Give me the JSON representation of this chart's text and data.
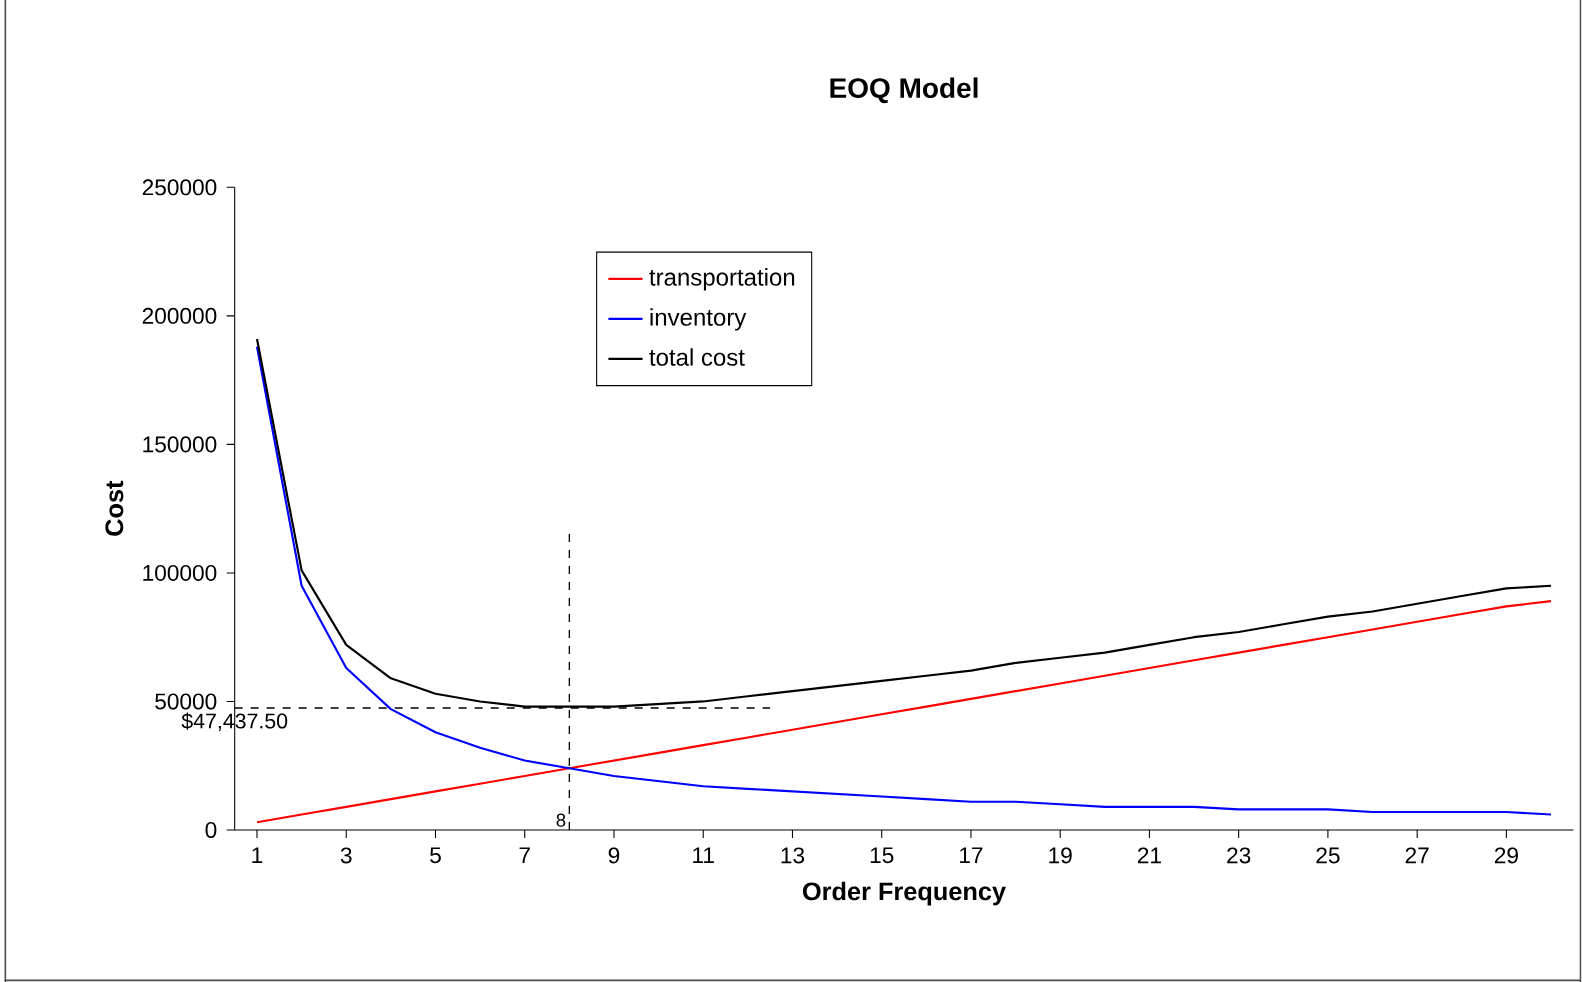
{
  "chart_data": {
    "type": "line",
    "title": "EOQ Model",
    "xlabel": "Order Frequency",
    "ylabel": "Cost",
    "x": [
      1,
      2,
      3,
      4,
      5,
      6,
      7,
      8,
      9,
      10,
      11,
      12,
      13,
      14,
      15,
      16,
      17,
      18,
      19,
      20,
      21,
      22,
      23,
      24,
      25,
      26,
      27,
      28,
      29,
      30
    ],
    "series": [
      {
        "name": "transportation",
        "color": "#ff0000",
        "values": [
          3000,
          6000,
          9000,
          12000,
          15000,
          18000,
          21000,
          24000,
          27000,
          30000,
          33000,
          36000,
          39000,
          42000,
          45000,
          48000,
          51000,
          54000,
          57000,
          60000,
          63000,
          66000,
          69000,
          72000,
          75000,
          78000,
          81000,
          84000,
          87000,
          89000
        ]
      },
      {
        "name": "inventory",
        "color": "#0000ff",
        "values": [
          188000,
          95000,
          63000,
          47000,
          38000,
          32000,
          27000,
          24000,
          21000,
          19000,
          17000,
          16000,
          15000,
          14000,
          13000,
          12000,
          11000,
          11000,
          10000,
          9000,
          9000,
          9000,
          8000,
          8000,
          8000,
          7000,
          7000,
          7000,
          7000,
          6000
        ]
      },
      {
        "name": "total cost",
        "color": "#000000",
        "values": [
          191000,
          101000,
          72000,
          59000,
          53000,
          50000,
          48000,
          48000,
          48000,
          49000,
          50000,
          52000,
          54000,
          56000,
          58000,
          60000,
          62000,
          65000,
          67000,
          69000,
          72000,
          75000,
          77000,
          80000,
          83000,
          85000,
          88000,
          91000,
          94000,
          95000
        ]
      }
    ],
    "xlim": [
      0.5,
      30.5
    ],
    "xticks": [
      1,
      3,
      5,
      7,
      9,
      11,
      13,
      15,
      17,
      19,
      21,
      23,
      25,
      27,
      29
    ],
    "ylim": [
      0,
      250000
    ],
    "yticks": [
      0,
      50000,
      100000,
      150000,
      200000,
      250000
    ],
    "ref_lines": [
      {
        "axis": "x",
        "value": 8,
        "label": "8",
        "color": "#000000",
        "line_style": "dashed"
      },
      {
        "axis": "y",
        "value": 47437.5,
        "label": "$47,437.50",
        "color": "#000000",
        "line_style": "dashed"
      }
    ],
    "grid": false,
    "legend": "top",
    "marker": "none",
    "line_style": "solid"
  }
}
